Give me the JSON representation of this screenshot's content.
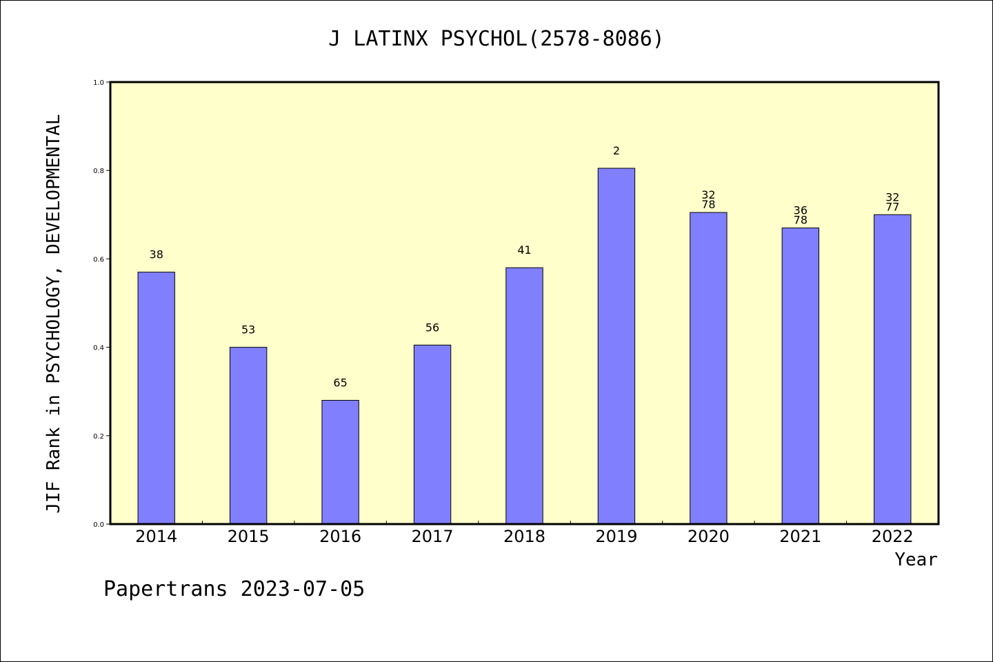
{
  "chart_data": {
    "type": "bar",
    "title": "J LATINX PSYCHOL(2578-8086)",
    "xlabel": "Year",
    "ylabel": "JIF Rank in PSYCHOLOGY, DEVELOPMENTAL",
    "categories": [
      "2014",
      "2015",
      "2016",
      "2017",
      "2018",
      "2019",
      "2020",
      "2021",
      "2022"
    ],
    "values": [
      0.57,
      0.4,
      0.28,
      0.405,
      0.58,
      0.805,
      0.705,
      0.67,
      0.7
    ],
    "data_labels": [
      [
        "38"
      ],
      [
        "53"
      ],
      [
        "65"
      ],
      [
        "56"
      ],
      [
        "41"
      ],
      [
        "2"
      ],
      [
        "32",
        "78"
      ],
      [
        "36",
        "78"
      ],
      [
        "32",
        "77"
      ]
    ],
    "yticks": [
      "0.0",
      "0.2",
      "0.4",
      "0.6",
      "0.8",
      "1.0"
    ],
    "ylim": [
      0,
      1
    ],
    "grid": false,
    "colors": {
      "plot_background": "#ffffcc",
      "bar_fill": "#8080ff",
      "bar_stroke": "#000000",
      "axis": "#000000"
    }
  },
  "footer": "Papertrans 2023-07-05"
}
